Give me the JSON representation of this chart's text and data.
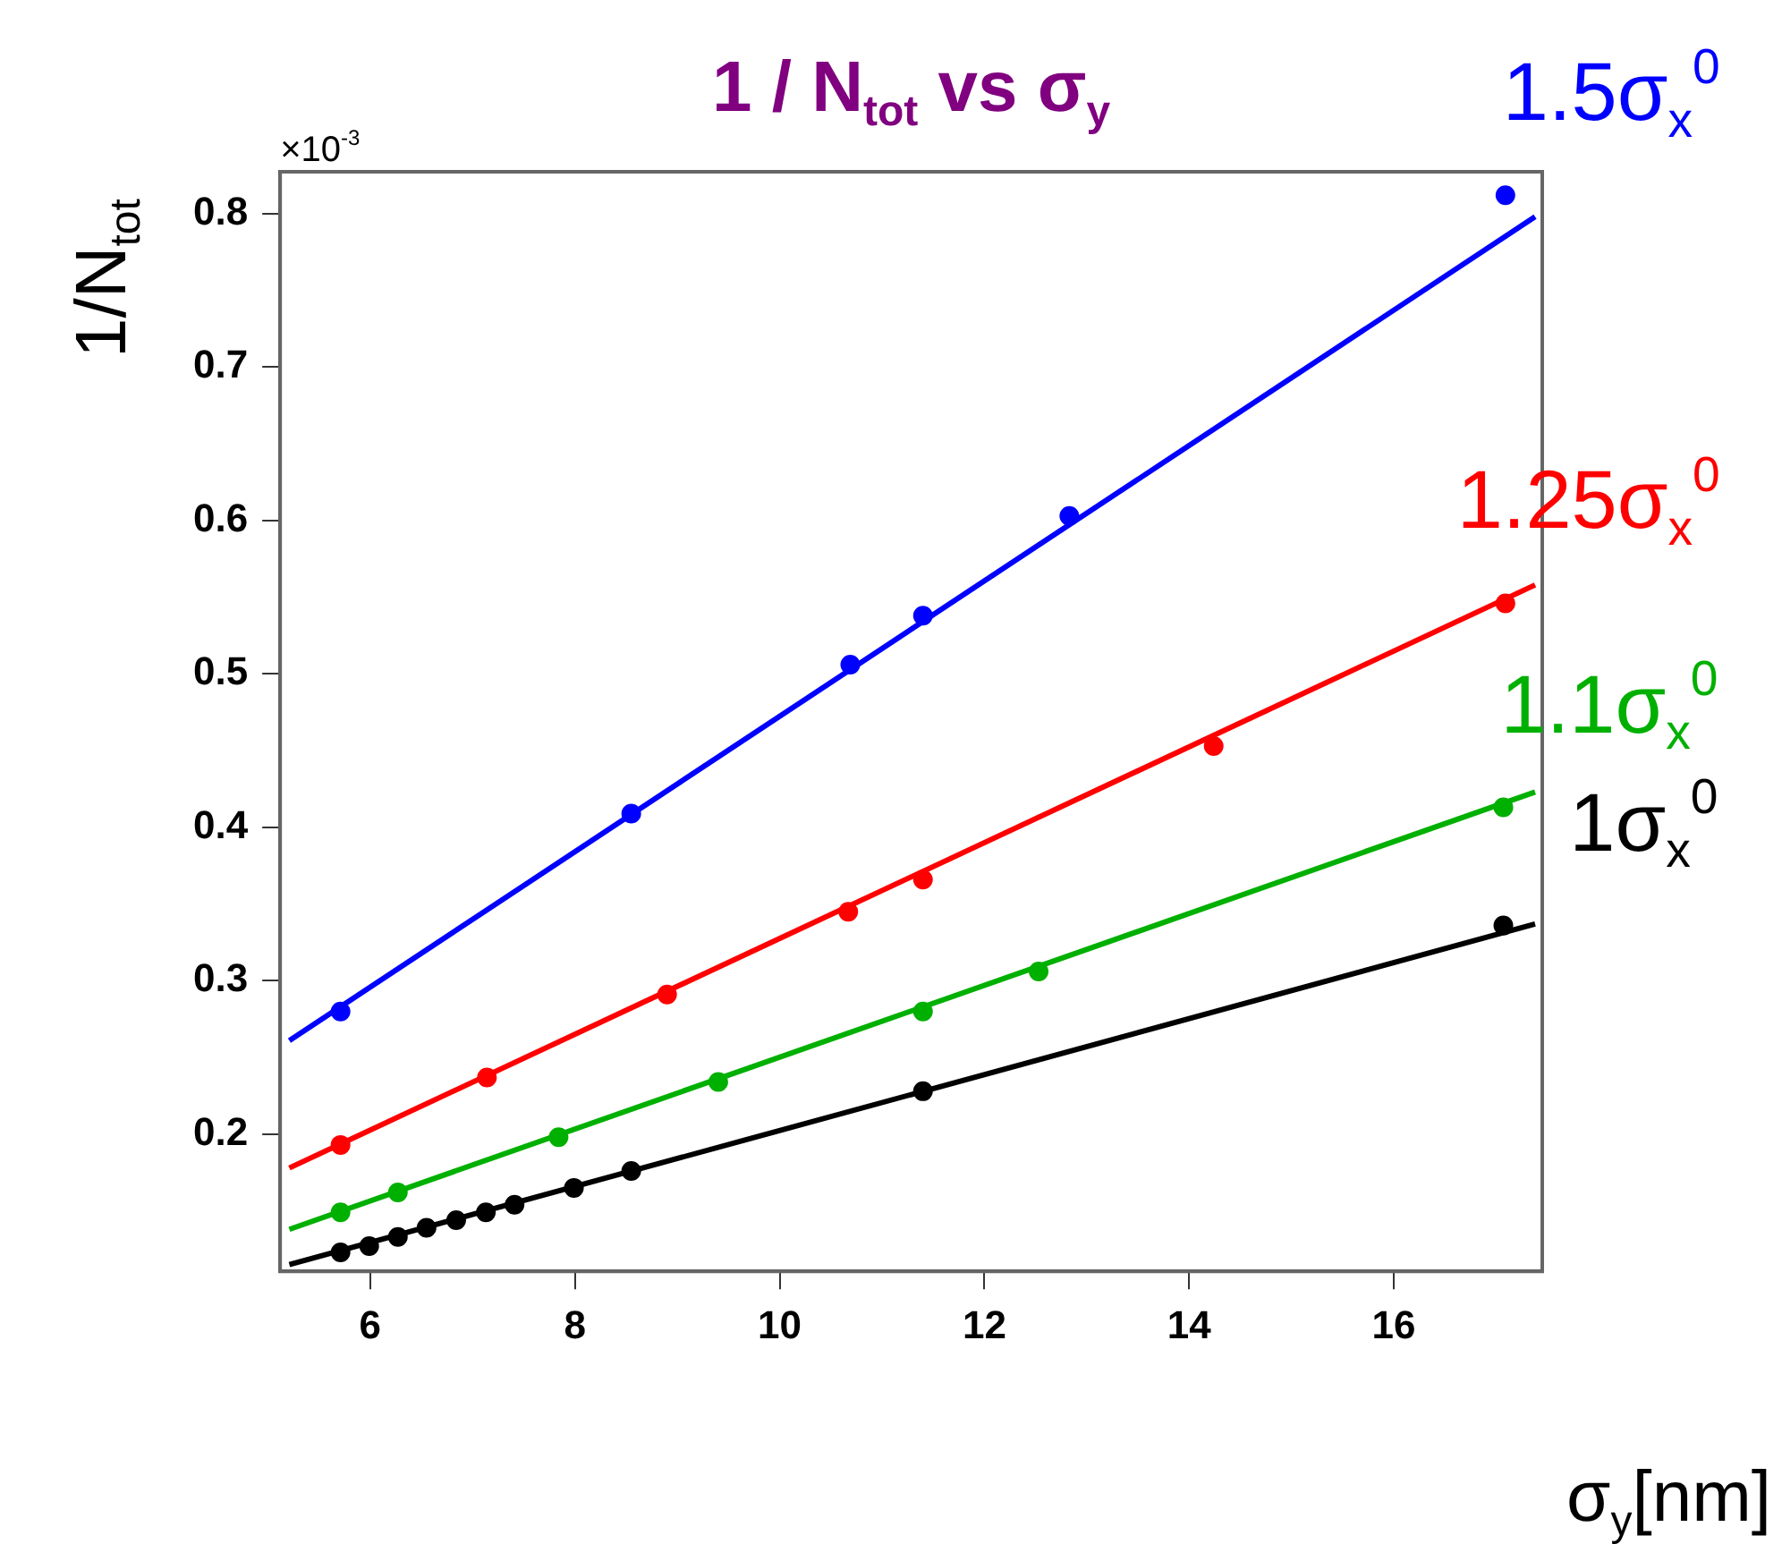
{
  "chart_data": {
    "type": "scatter",
    "title": "1 / N$_{tot}$ vs σ$_{y}$",
    "xlabel": "σ$_{y}$[nm]",
    "ylabel": "1/N$_{tot}$",
    "annotations": [
      "×10$^{-3}$"
    ],
    "xlim": [
      5.12,
      17.45
    ],
    "xticks": [
      6,
      8,
      10,
      12,
      14,
      16
    ],
    "ylim": [
      0.1106,
      0.8273
    ],
    "yticks": [
      0.2,
      0.3,
      0.4,
      0.5,
      0.6,
      0.7,
      0.8
    ],
    "grid": false,
    "legend": false,
    "marker": "circle",
    "series": [
      {
        "name": "1σ$_{x}$$^{0}$",
        "color": "#000000",
        "x": [
          5.71,
          5.99,
          6.27,
          6.55,
          6.84,
          7.13,
          7.41,
          7.99,
          8.55,
          11.4,
          17.07
        ],
        "values": [
          0.123,
          0.127,
          0.133,
          0.139,
          0.144,
          0.149,
          0.154,
          0.165,
          0.176,
          0.228,
          0.336
        ]
      },
      {
        "name": "1.1σ$_{x}$$^{0}$",
        "color": "#00b000",
        "x": [
          5.71,
          6.27,
          7.84,
          9.4,
          11.4,
          12.53,
          17.07
        ],
        "values": [
          0.149,
          0.162,
          0.198,
          0.234,
          0.28,
          0.306,
          0.413
        ]
      },
      {
        "name": "1.25σ$_{x}$$^{0}$",
        "color": "#ff0000",
        "x": [
          5.71,
          7.14,
          8.9,
          10.67,
          11.4,
          14.24,
          17.09
        ],
        "values": [
          0.193,
          0.237,
          0.291,
          0.345,
          0.366,
          0.453,
          0.546
        ]
      },
      {
        "name": "1.5σ$_{x}$$^{0}$",
        "color": "#0000ff",
        "x": [
          5.71,
          8.55,
          10.69,
          11.4,
          12.83,
          17.09
        ],
        "values": [
          0.28,
          0.409,
          0.506,
          0.538,
          0.603,
          0.812
        ]
      },
      {
        "type": "line",
        "marker": "none",
        "color": "#000000",
        "x": [
          5.21,
          17.38
        ],
        "values": [
          0.115,
          0.337
        ]
      },
      {
        "type": "line",
        "marker": "none",
        "color": "#00b000",
        "x": [
          5.21,
          17.38
        ],
        "values": [
          0.138,
          0.423
        ]
      },
      {
        "type": "line",
        "marker": "none",
        "color": "#ff0000",
        "x": [
          5.21,
          17.38
        ],
        "values": [
          0.178,
          0.558
        ]
      },
      {
        "type": "line",
        "marker": "none",
        "color": "#0000ff",
        "x": [
          5.21,
          17.38
        ],
        "values": [
          0.261,
          0.798
        ]
      }
    ]
  }
}
